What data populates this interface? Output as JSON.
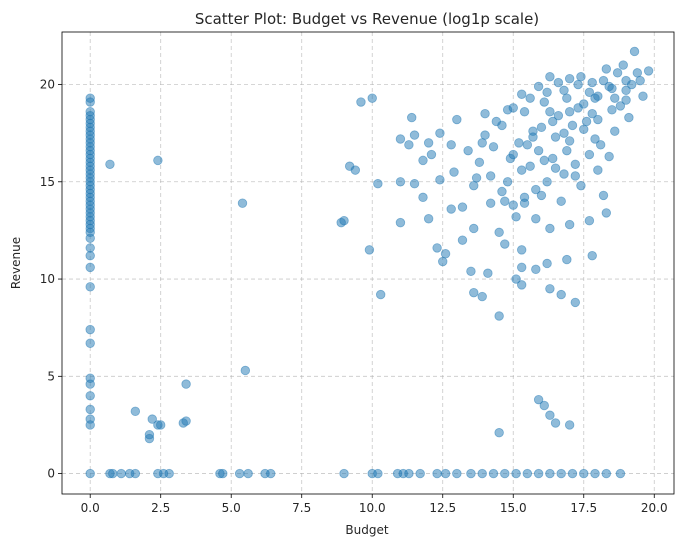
{
  "chart_data": {
    "type": "scatter",
    "title": "Scatter Plot: Budget vs Revenue (log1p scale)",
    "xlabel": "Budget",
    "ylabel": "Revenue",
    "xlim": [
      -1.0,
      20.7
    ],
    "ylim": [
      -1.05,
      22.7
    ],
    "xticks": [
      0.0,
      2.5,
      5.0,
      7.5,
      10.0,
      12.5,
      15.0,
      17.5,
      20.0
    ],
    "xtick_labels": [
      "0.0",
      "2.5",
      "5.0",
      "7.5",
      "10.0",
      "12.5",
      "15.0",
      "17.5",
      "20.0"
    ],
    "yticks": [
      0,
      5,
      10,
      15,
      20
    ],
    "ytick_labels": [
      "0",
      "5",
      "10",
      "15",
      "20"
    ],
    "grid": true,
    "grid_style": "dashed",
    "legend": false,
    "marker_color": "#1f77b4",
    "marker_alpha": 0.5,
    "points": [
      [
        0,
        19.3
      ],
      [
        0,
        19.1
      ],
      [
        0,
        18.6
      ],
      [
        0,
        18.4
      ],
      [
        0,
        18.2
      ],
      [
        0,
        18.0
      ],
      [
        0,
        17.8
      ],
      [
        0,
        17.6
      ],
      [
        0,
        17.4
      ],
      [
        0,
        17.2
      ],
      [
        0,
        17.0
      ],
      [
        0,
        16.8
      ],
      [
        0,
        16.6
      ],
      [
        0,
        16.4
      ],
      [
        0,
        16.2
      ],
      [
        0,
        16.0
      ],
      [
        0,
        15.8
      ],
      [
        0,
        15.6
      ],
      [
        0,
        15.4
      ],
      [
        0,
        15.2
      ],
      [
        0,
        15.0
      ],
      [
        0,
        14.8
      ],
      [
        0,
        14.6
      ],
      [
        0,
        14.4
      ],
      [
        0,
        14.2
      ],
      [
        0,
        14.0
      ],
      [
        0,
        13.8
      ],
      [
        0,
        13.6
      ],
      [
        0,
        13.4
      ],
      [
        0,
        13.2
      ],
      [
        0,
        13.0
      ],
      [
        0,
        12.8
      ],
      [
        0,
        12.6
      ],
      [
        0,
        12.4
      ],
      [
        0,
        12.1
      ],
      [
        0,
        11.6
      ],
      [
        0,
        11.2
      ],
      [
        0,
        10.6
      ],
      [
        0,
        9.6
      ],
      [
        0,
        7.4
      ],
      [
        0,
        6.7
      ],
      [
        0,
        4.9
      ],
      [
        0,
        4.6
      ],
      [
        0,
        4.0
      ],
      [
        0,
        3.3
      ],
      [
        0,
        2.8
      ],
      [
        0,
        2.5
      ],
      [
        0,
        0
      ],
      [
        0.7,
        15.9
      ],
      [
        2.4,
        16.1
      ],
      [
        5.4,
        13.9
      ],
      [
        9.6,
        19.1
      ],
      [
        10.0,
        19.3
      ],
      [
        9.2,
        15.8
      ],
      [
        9.4,
        15.6
      ],
      [
        10.2,
        14.9
      ],
      [
        8.9,
        12.9
      ],
      [
        9.0,
        13.0
      ],
      [
        9.9,
        11.5
      ],
      [
        10.3,
        9.2
      ],
      [
        1.6,
        3.2
      ],
      [
        2.1,
        2.0
      ],
      [
        2.1,
        1.8
      ],
      [
        2.2,
        2.8
      ],
      [
        2.4,
        2.5
      ],
      [
        2.5,
        2.5
      ],
      [
        3.3,
        2.6
      ],
      [
        3.4,
        2.7
      ],
      [
        3.4,
        4.6
      ],
      [
        5.5,
        5.3
      ],
      [
        0.7,
        0
      ],
      [
        0.8,
        0
      ],
      [
        1.1,
        0
      ],
      [
        1.4,
        0
      ],
      [
        1.6,
        0
      ],
      [
        2.4,
        0
      ],
      [
        2.6,
        0
      ],
      [
        2.8,
        0
      ],
      [
        4.6,
        0
      ],
      [
        4.7,
        0
      ],
      [
        5.3,
        0
      ],
      [
        5.6,
        0
      ],
      [
        6.2,
        0
      ],
      [
        6.4,
        0
      ],
      [
        9.0,
        0
      ],
      [
        10.0,
        0
      ],
      [
        10.2,
        0
      ],
      [
        10.9,
        0
      ],
      [
        11.1,
        0
      ],
      [
        11.3,
        0
      ],
      [
        11.7,
        0
      ],
      [
        12.3,
        0
      ],
      [
        12.6,
        0
      ],
      [
        13.0,
        0
      ],
      [
        13.5,
        0
      ],
      [
        13.9,
        0
      ],
      [
        14.3,
        0
      ],
      [
        14.7,
        0
      ],
      [
        15.1,
        0
      ],
      [
        15.5,
        0
      ],
      [
        15.9,
        0
      ],
      [
        16.3,
        0
      ],
      [
        16.7,
        0
      ],
      [
        17.1,
        0
      ],
      [
        17.5,
        0
      ],
      [
        17.9,
        0
      ],
      [
        18.3,
        0
      ],
      [
        18.8,
        0
      ],
      [
        14.5,
        2.1
      ],
      [
        15.9,
        3.8
      ],
      [
        16.1,
        3.5
      ],
      [
        16.3,
        3.0
      ],
      [
        16.5,
        2.6
      ],
      [
        17.0,
        2.5
      ],
      [
        14.5,
        8.1
      ],
      [
        13.6,
        9.3
      ],
      [
        13.9,
        9.1
      ],
      [
        14.1,
        10.3
      ],
      [
        15.1,
        10.0
      ],
      [
        15.3,
        9.7
      ],
      [
        16.3,
        9.5
      ],
      [
        16.7,
        9.2
      ],
      [
        17.2,
        8.8
      ],
      [
        13.5,
        10.4
      ],
      [
        15.3,
        10.6
      ],
      [
        15.8,
        10.5
      ],
      [
        16.2,
        10.8
      ],
      [
        16.9,
        11.0
      ],
      [
        17.8,
        11.2
      ],
      [
        12.3,
        11.6
      ],
      [
        12.6,
        11.3
      ],
      [
        12.5,
        10.9
      ],
      [
        13.2,
        12.0
      ],
      [
        13.6,
        12.6
      ],
      [
        14.7,
        11.8
      ],
      [
        15.3,
        11.5
      ],
      [
        11.0,
        12.9
      ],
      [
        12.0,
        13.1
      ],
      [
        12.8,
        13.6
      ],
      [
        13.2,
        13.7
      ],
      [
        14.5,
        12.4
      ],
      [
        18.3,
        13.4
      ],
      [
        11.0,
        15.0
      ],
      [
        11.5,
        14.9
      ],
      [
        11.8,
        14.2
      ],
      [
        12.4,
        15.1
      ],
      [
        12.9,
        15.5
      ],
      [
        11.8,
        16.1
      ],
      [
        11.3,
        16.9
      ],
      [
        12.0,
        17.0
      ],
      [
        12.4,
        17.5
      ],
      [
        11.5,
        17.4
      ],
      [
        11.0,
        17.2
      ],
      [
        13.0,
        18.2
      ],
      [
        14.0,
        18.5
      ],
      [
        11.4,
        18.3
      ],
      [
        12.1,
        16.4
      ],
      [
        12.8,
        16.9
      ],
      [
        13.6,
        14.8
      ],
      [
        14.2,
        13.9
      ],
      [
        15.2,
        17.0
      ],
      [
        15.7,
        17.6
      ],
      [
        16.4,
        18.1
      ],
      [
        17.0,
        18.6
      ],
      [
        17.5,
        19.0
      ],
      [
        18.0,
        19.4
      ],
      [
        18.5,
        19.8
      ],
      [
        19.0,
        20.2
      ],
      [
        19.4,
        20.6
      ],
      [
        19.8,
        20.7
      ],
      [
        16.8,
        19.7
      ],
      [
        17.8,
        20.1
      ],
      [
        18.7,
        20.6
      ],
      [
        15.4,
        18.6
      ],
      [
        16.1,
        19.1
      ],
      [
        16.3,
        20.4
      ],
      [
        17.0,
        20.3
      ],
      [
        17.7,
        19.6
      ],
      [
        18.2,
        20.2
      ],
      [
        18.9,
        21.0
      ],
      [
        19.3,
        21.7
      ],
      [
        19.1,
        18.3
      ],
      [
        18.6,
        17.6
      ],
      [
        18.1,
        16.9
      ],
      [
        17.7,
        16.4
      ],
      [
        17.2,
        15.9
      ],
      [
        16.8,
        15.4
      ],
      [
        16.2,
        15.0
      ],
      [
        15.8,
        14.6
      ],
      [
        15.4,
        14.2
      ],
      [
        15.0,
        13.8
      ],
      [
        14.6,
        14.5
      ],
      [
        14.2,
        15.3
      ],
      [
        13.8,
        16.0
      ],
      [
        13.4,
        16.6
      ],
      [
        14.0,
        17.4
      ],
      [
        14.6,
        17.9
      ],
      [
        15.0,
        16.4
      ],
      [
        15.6,
        15.8
      ],
      [
        16.4,
        16.2
      ],
      [
        17.0,
        17.1
      ],
      [
        17.5,
        17.7
      ],
      [
        18.0,
        18.2
      ],
      [
        18.5,
        18.7
      ],
      [
        19.0,
        19.2
      ],
      [
        16.6,
        18.4
      ],
      [
        16.0,
        17.8
      ],
      [
        15.5,
        16.9
      ],
      [
        14.9,
        16.2
      ],
      [
        16.9,
        16.6
      ],
      [
        17.3,
        18.8
      ],
      [
        17.9,
        19.3
      ],
      [
        18.4,
        19.9
      ],
      [
        15.9,
        16.6
      ],
      [
        16.5,
        17.3
      ],
      [
        17.1,
        17.9
      ],
      [
        15.3,
        15.6
      ],
      [
        14.8,
        15.0
      ],
      [
        16.0,
        14.3
      ],
      [
        16.7,
        14.0
      ],
      [
        17.4,
        14.8
      ],
      [
        18.0,
        15.6
      ],
      [
        18.4,
        16.3
      ],
      [
        15.1,
        13.2
      ],
      [
        15.8,
        13.1
      ],
      [
        16.3,
        12.6
      ],
      [
        17.0,
        12.8
      ],
      [
        17.7,
        13.0
      ],
      [
        13.7,
        15.2
      ],
      [
        14.3,
        16.8
      ],
      [
        15.6,
        19.3
      ],
      [
        16.2,
        19.6
      ],
      [
        17.4,
        20.4
      ],
      [
        18.3,
        20.8
      ],
      [
        19.5,
        20.2
      ],
      [
        19.6,
        19.4
      ],
      [
        15.0,
        18.8
      ],
      [
        14.4,
        18.1
      ],
      [
        16.9,
        19.3
      ],
      [
        17.6,
        18.1
      ],
      [
        18.8,
        18.9
      ],
      [
        19.2,
        20.0
      ],
      [
        17.2,
        15.3
      ],
      [
        18.2,
        14.3
      ],
      [
        15.4,
        13.9
      ],
      [
        14.7,
        14.0
      ],
      [
        13.9,
        17.0
      ],
      [
        16.5,
        15.7
      ],
      [
        17.9,
        17.2
      ],
      [
        16.1,
        16.1
      ],
      [
        16.8,
        17.5
      ],
      [
        15.7,
        17.3
      ],
      [
        16.3,
        18.6
      ],
      [
        17.8,
        18.5
      ],
      [
        18.6,
        19.3
      ],
      [
        19.0,
        19.7
      ],
      [
        17.3,
        20.0
      ],
      [
        16.6,
        20.1
      ],
      [
        15.9,
        19.9
      ],
      [
        15.3,
        19.5
      ],
      [
        14.8,
        18.7
      ]
    ]
  }
}
